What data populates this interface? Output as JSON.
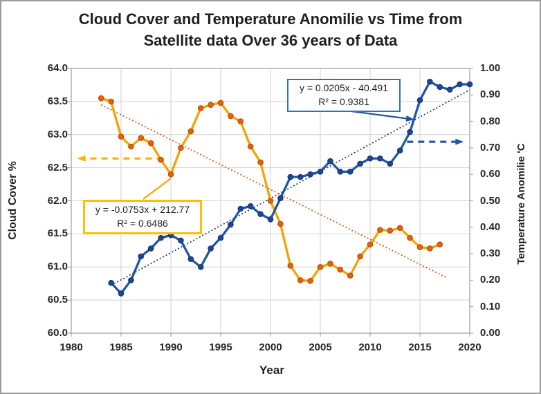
{
  "chart_data": {
    "type": "line",
    "title_line1": "Cloud Cover and Temperature Anomilie vs Time from",
    "title_line2": "Satellite data Over 36 years of Data",
    "xlabel": "Year",
    "ylabel_left": "Cloud Cover %",
    "ylabel_right": "Temperature Anomilie 'C",
    "xlim": [
      1980,
      2020
    ],
    "x_tick_labels": [
      "1980",
      "1985",
      "1990",
      "1995",
      "2000",
      "2005",
      "2010",
      "2015",
      "2020"
    ],
    "ylim_left": [
      60.0,
      64.0
    ],
    "y_tick_labels_left": [
      "64.0",
      "63.5",
      "63.0",
      "62.5",
      "62.0",
      "61.5",
      "61.0",
      "60.5",
      "60.0"
    ],
    "ylim_right": [
      0.0,
      1.0
    ],
    "y_tick_labels_right": [
      "1.00",
      "0.90",
      "0.80",
      "0.70",
      "0.60",
      "0.50",
      "0.40",
      "0.30",
      "0.20",
      "0.10",
      "0.00"
    ],
    "grid": true,
    "colors": {
      "cloud_line": "#f5a300",
      "cloud_marker": "#e2620d",
      "cloud_marker_edge": "#b34a00",
      "temp_line": "#2155a4",
      "temp_marker": "#1d4693",
      "temp_marker_edge": "#14356e",
      "cloud_trend": "#c55a11",
      "temp_trend": "#1f3864",
      "cloud_arrow": "#ffb300",
      "temp_arrow": "#2457a5",
      "grid_line": "#d2d2d2",
      "axis_line": "#9b9b9b"
    },
    "series": [
      {
        "name": "cloud_cover_percent",
        "axis": "left",
        "x": [
          1983,
          1984,
          1985,
          1986,
          1987,
          1988,
          1989,
          1990,
          1991,
          1992,
          1993,
          1994,
          1995,
          1996,
          1997,
          1998,
          1999,
          2000,
          2001,
          2002,
          2003,
          2004,
          2005,
          2006,
          2007,
          2008,
          2009,
          2010,
          2011,
          2012,
          2013,
          2014,
          2015,
          2016,
          2017
        ],
        "values": [
          63.55,
          63.5,
          62.97,
          62.82,
          62.95,
          62.87,
          62.62,
          62.4,
          62.8,
          63.05,
          63.4,
          63.45,
          63.48,
          63.28,
          63.2,
          62.82,
          62.58,
          62.0,
          61.65,
          61.02,
          60.8,
          60.79,
          61.0,
          61.05,
          60.96,
          60.87,
          61.16,
          61.34,
          61.56,
          61.55,
          61.59,
          61.44,
          61.3,
          61.28,
          61.34
        ]
      },
      {
        "name": "temperature_anomaly_c",
        "axis": "right",
        "x": [
          1984,
          1985,
          1986,
          1987,
          1988,
          1989,
          1990,
          1991,
          1992,
          1993,
          1994,
          1995,
          1996,
          1997,
          1998,
          1999,
          2000,
          2001,
          2002,
          2003,
          2004,
          2005,
          2006,
          2007,
          2008,
          2009,
          2010,
          2011,
          2012,
          2013,
          2014,
          2015,
          2016,
          2017,
          2018,
          2019,
          2020
        ],
        "values": [
          0.19,
          0.15,
          0.2,
          0.29,
          0.32,
          0.36,
          0.37,
          0.35,
          0.28,
          0.25,
          0.32,
          0.36,
          0.41,
          0.47,
          0.48,
          0.45,
          0.43,
          0.51,
          0.59,
          0.59,
          0.6,
          0.61,
          0.65,
          0.61,
          0.61,
          0.64,
          0.66,
          0.66,
          0.64,
          0.69,
          0.76,
          0.88,
          0.95,
          0.93,
          0.92,
          0.94,
          0.94
        ]
      }
    ],
    "trendlines": [
      {
        "name": "temperature_trend",
        "equation": "y = 0.0205x - 40.491",
        "r2": "R² = 0.9381",
        "slope": 0.0205,
        "intercept": -40.491,
        "axis": "right",
        "x_range": [
          1984,
          2020
        ]
      },
      {
        "name": "cloud_cover_trend",
        "equation": "y = -0.0753x + 212.77",
        "r2": "R² = 0.6486",
        "slope": -0.0753,
        "intercept": 212.77,
        "axis": "left",
        "x_range": [
          1983,
          2017.6
        ]
      }
    ],
    "arrows": [
      {
        "name": "left-axis-pointer-arrow",
        "axis": "left",
        "y": 62.64,
        "x_from": 1989.2,
        "x_to": 1980.6
      },
      {
        "name": "right-axis-pointer-arrow",
        "axis": "right",
        "y": 0.723,
        "x_from": 2013.7,
        "x_to": 2019.4
      }
    ]
  }
}
